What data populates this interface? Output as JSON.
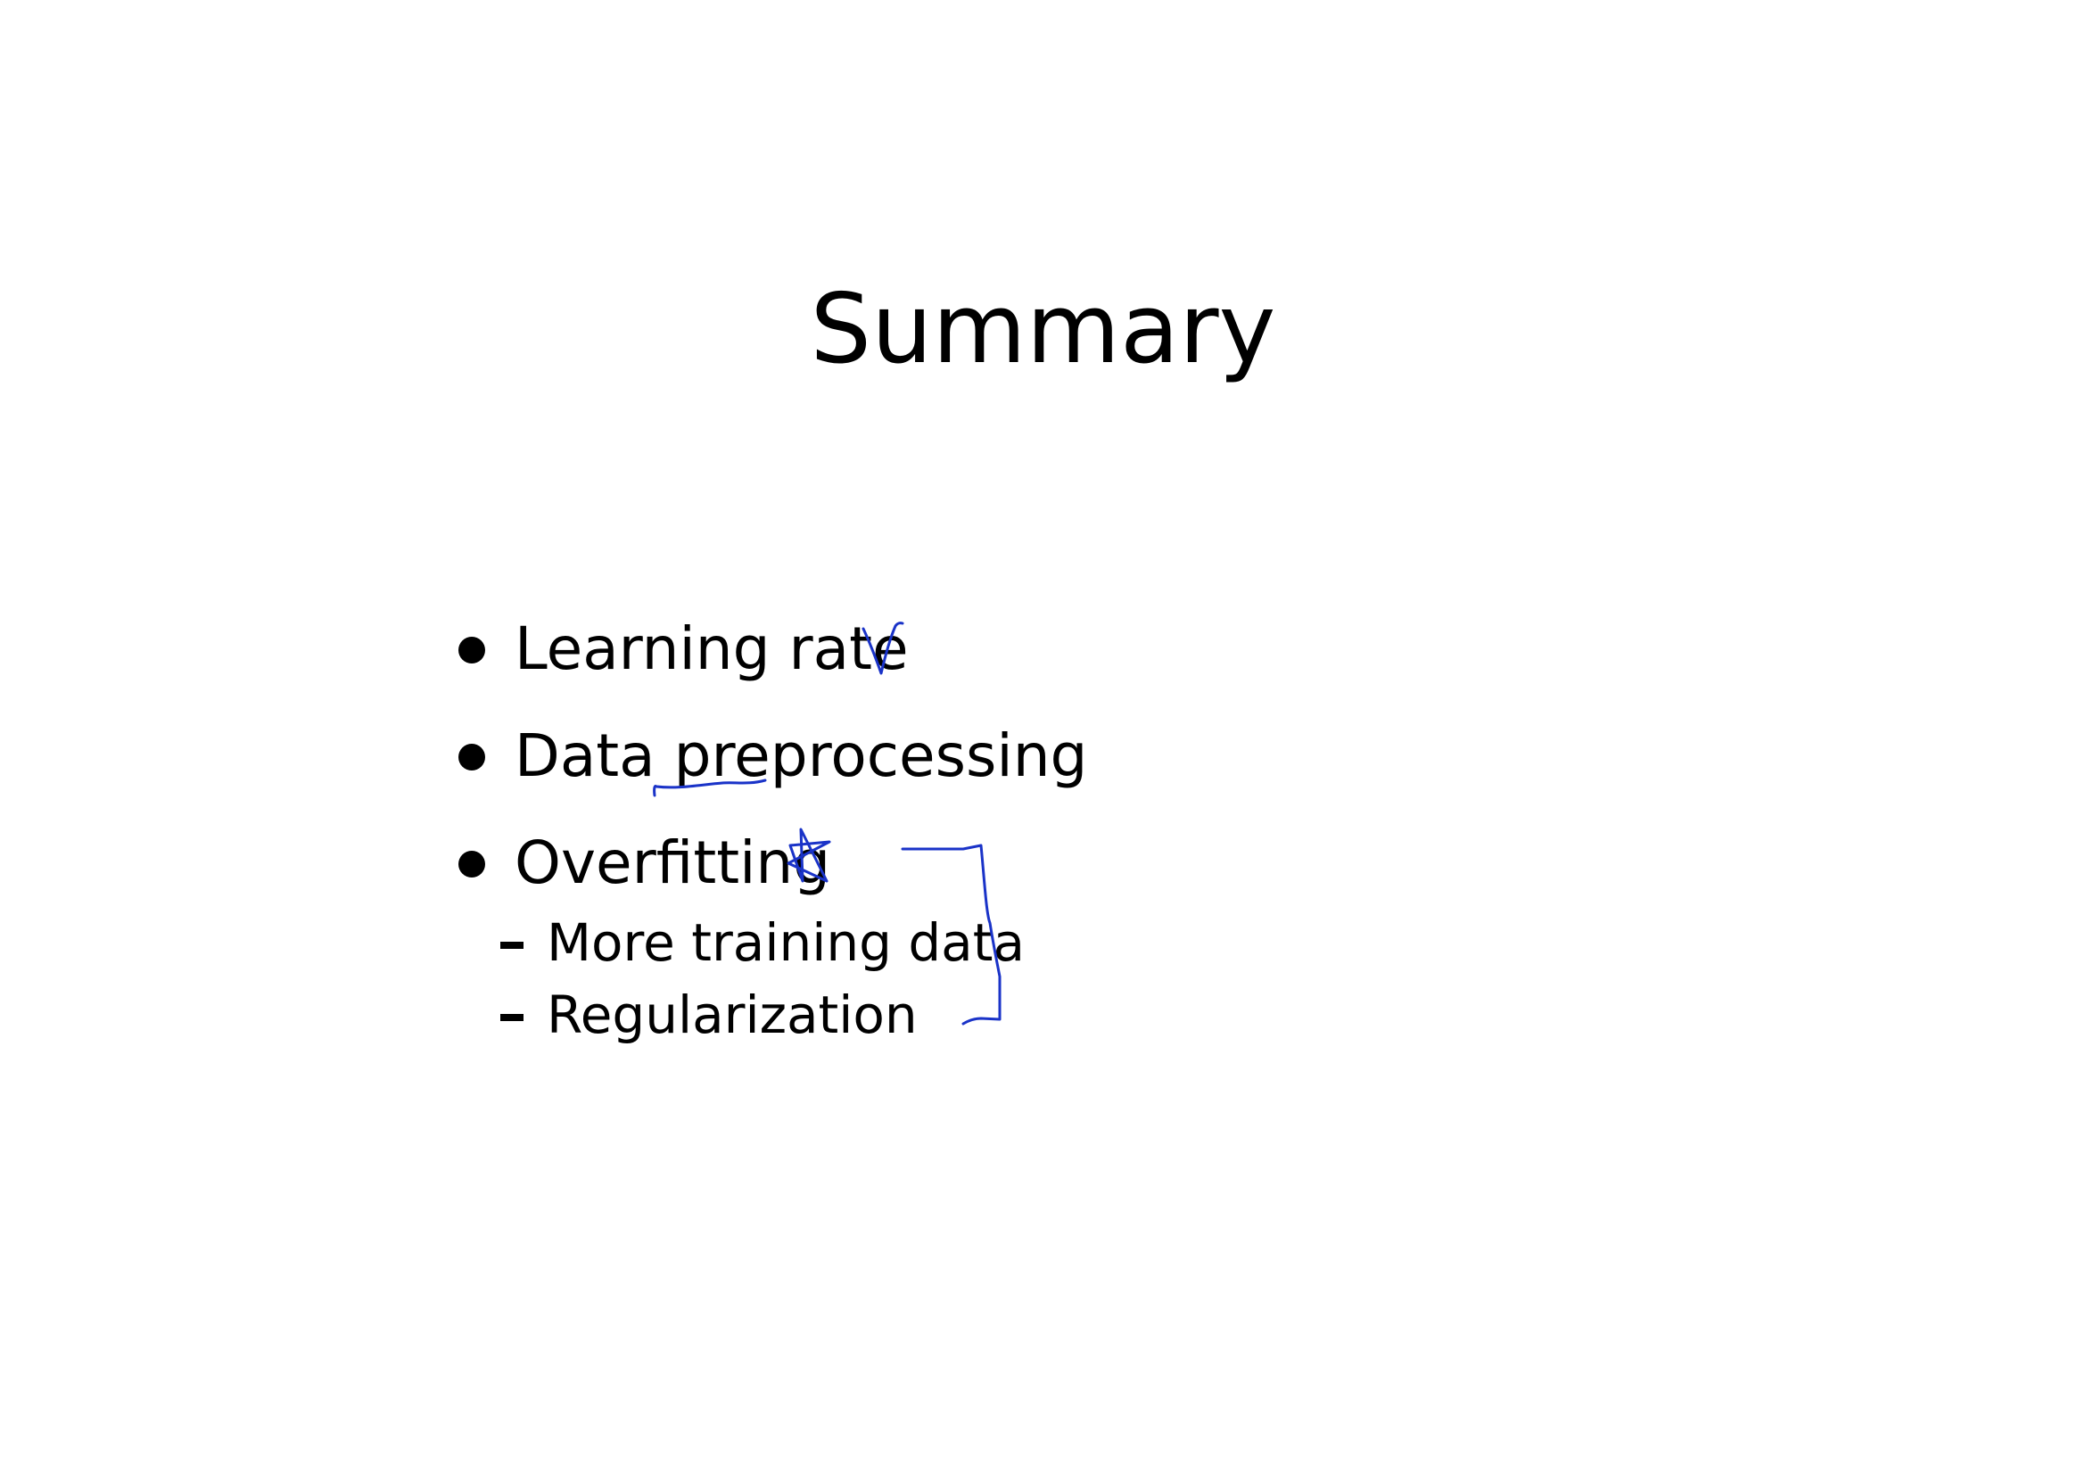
{
  "slide": {
    "title": "Summary",
    "bullets": [
      {
        "label": "Learning rate"
      },
      {
        "label": "Data preprocessing"
      },
      {
        "label": "Overfitting"
      }
    ],
    "sub_bullets": [
      {
        "label": "More training data"
      },
      {
        "label": "Regularization"
      }
    ]
  },
  "annotations": {
    "ink_color": "#1a33c8",
    "items": [
      "checkmark",
      "underline-preprocessing",
      "star",
      "bracket-overfitting-remedies"
    ]
  }
}
